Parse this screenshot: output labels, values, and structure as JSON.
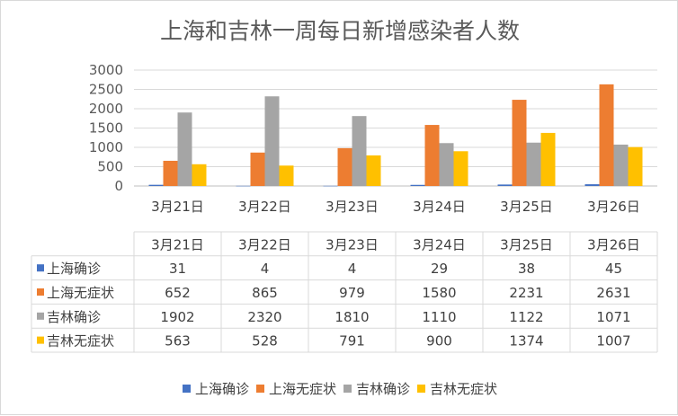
{
  "chart_data": {
    "type": "bar",
    "title": "上海和吉林一周每日新增感染者人数",
    "categories": [
      "3月21日",
      "3月22日",
      "3月23日",
      "3月24日",
      "3月25日",
      "3月26日"
    ],
    "series": [
      {
        "name": "上海确诊",
        "color": "#4472c4",
        "values": [
          31,
          4,
          4,
          29,
          38,
          45
        ]
      },
      {
        "name": "上海无症状",
        "color": "#ed7d31",
        "values": [
          652,
          865,
          979,
          1580,
          2231,
          2631
        ]
      },
      {
        "name": "吉林确诊",
        "color": "#a5a5a5",
        "values": [
          1902,
          2320,
          1810,
          1110,
          1122,
          1071
        ]
      },
      {
        "name": "吉林无症状",
        "color": "#ffc000",
        "values": [
          563,
          528,
          791,
          900,
          1374,
          1007
        ]
      }
    ],
    "ylim": [
      0,
      3000
    ],
    "yticks": [
      0,
      500,
      1000,
      1500,
      2000,
      2500,
      3000
    ],
    "grid": true,
    "data_table": true,
    "legend": "bottom"
  }
}
